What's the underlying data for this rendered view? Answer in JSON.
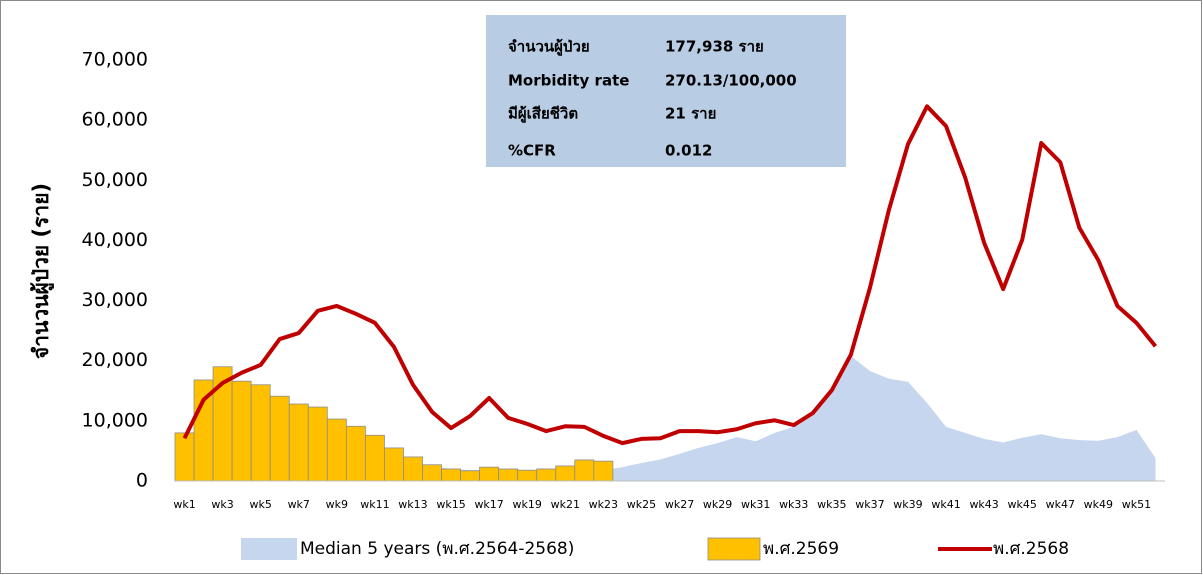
{
  "chart_data": {
    "type": "combo",
    "y_label": "จำนวนผู้ป่วย (ราย)",
    "annotations": [
      [
        "จำนวนผู้ป่วย",
        "177,938 ราย"
      ],
      [
        "Morbidity rate",
        "270.13/100,000"
      ],
      [
        "มีผู้เสียชีวิต",
        "21 ราย"
      ],
      [
        "%CFR",
        "0.012"
      ]
    ],
    "categories": [
      "wk1",
      null,
      "wk3",
      null,
      "wk5",
      null,
      "wk7",
      null,
      "wk9",
      null,
      "wk11",
      null,
      "wk13",
      null,
      "wk15",
      null,
      "wk17",
      null,
      "wk19",
      null,
      "wk21",
      null,
      "wk23",
      null,
      "wk25",
      null,
      "wk27",
      null,
      "wk29",
      null,
      "wk31",
      null,
      "wk33",
      null,
      "wk35",
      null,
      "wk37",
      null,
      "wk39",
      null,
      "wk41",
      null,
      "wk43",
      null,
      "wk45",
      null,
      "wk47",
      null,
      "wk49",
      null,
      "wk51",
      null
    ],
    "ylim": [
      0,
      70000
    ],
    "yticks": [
      0,
      {
        "value": 10000,
        "label": "10,000"
      },
      {
        "value": 20000,
        "label": "20,000"
      },
      {
        "value": 30000,
        "label": "30,000"
      },
      {
        "value": 40000,
        "label": "40,000"
      },
      {
        "value": 50000,
        "label": "50,000"
      },
      {
        "value": 60000,
        "label": "60,000"
      },
      {
        "value": 70000,
        "label": "70,000"
      }
    ],
    "series": [
      {
        "name": "Median 5 years (พ.ศ.2564-2568)",
        "type": "area",
        "color": "#c6d6ee",
        "values": [
          6000,
          9000,
          10000,
          9500,
          9000,
          8000,
          7000,
          6500,
          6000,
          5500,
          5000,
          4000,
          3000,
          2500,
          2000,
          1800,
          1800,
          1700,
          1700,
          1700,
          1700,
          1700,
          1800,
          2300,
          3000,
          3600,
          4500,
          5500,
          6300,
          7300,
          6600,
          8000,
          9000,
          11000,
          15000,
          20800,
          18300,
          17000,
          16500,
          13000,
          9000,
          8000,
          7000,
          6400,
          7200,
          7800,
          7100,
          6800,
          6700,
          7300,
          8500,
          3800
        ]
      },
      {
        "name": "พ.ศ.2569",
        "type": "bar",
        "color": "#ffc000",
        "values": [
          8000,
          16800,
          19000,
          16600,
          16000,
          14100,
          12800,
          12300,
          10300,
          9100,
          7600,
          5500,
          4000,
          2700,
          2000,
          1700,
          2300,
          2000,
          1800,
          2000,
          2500,
          3500,
          3300,
          null,
          null,
          null,
          null,
          null,
          null,
          null,
          null,
          null,
          null,
          null,
          null,
          null,
          null,
          null,
          null,
          null,
          null,
          null,
          null,
          null,
          null,
          null,
          null,
          null,
          null,
          null,
          null,
          null
        ]
      },
      {
        "name": "พ.ศ.2568",
        "type": "line",
        "color": "#c00000",
        "values": [
          7100,
          13500,
          16300,
          18000,
          19300,
          23600,
          24600,
          28300,
          29100,
          27800,
          26300,
          22300,
          16000,
          11500,
          8800,
          10800,
          13800,
          10500,
          9500,
          8300,
          9100,
          9000,
          7500,
          6300,
          7000,
          7100,
          8300,
          8300,
          8100,
          8600,
          9600,
          10100,
          9300,
          11300,
          15100,
          21000,
          32100,
          45100,
          56000,
          62300,
          59000,
          50500,
          39600,
          31900,
          40100,
          56200,
          53000,
          42100,
          36700,
          29100,
          26300,
          22400
        ]
      }
    ]
  }
}
